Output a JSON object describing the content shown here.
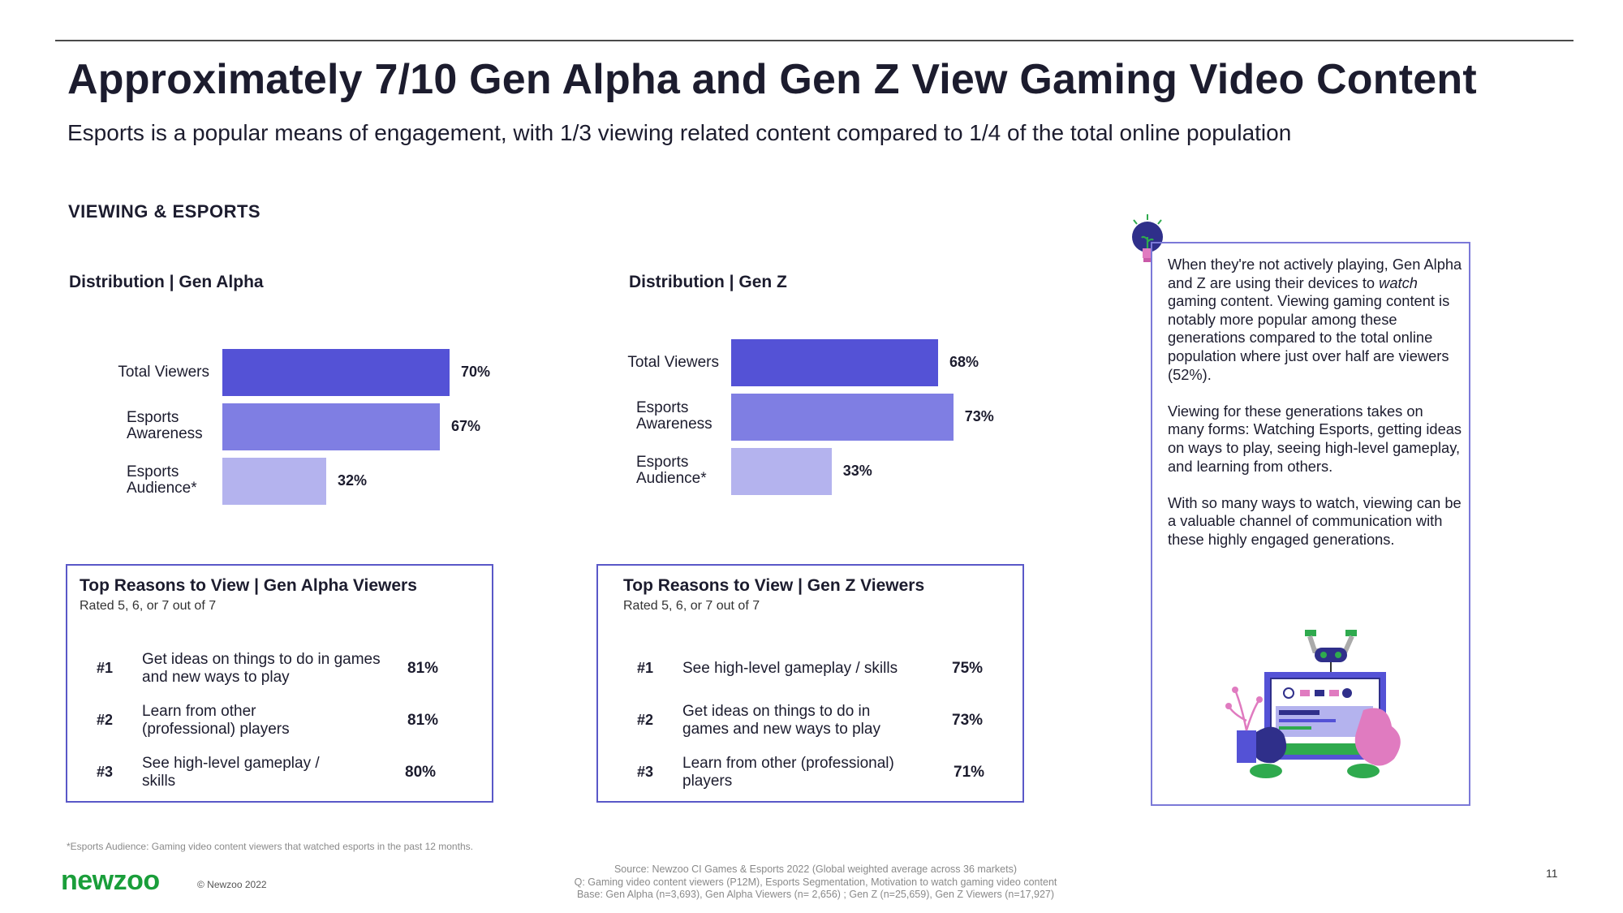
{
  "title": "Approximately 7/10 Gen Alpha and Gen Z View Gaming Video Content",
  "subtitle": "Esports is a popular means of engagement, with 1/3 viewing related content compared to 1/4 of the total online population",
  "section_label": "VIEWING & ESPORTS",
  "colors": {
    "bar1": "#5452d6",
    "bar2": "#7f7ee3",
    "bar3": "#b4b3ee",
    "box_border": "#5a58c8",
    "brand_green": "#1a9e3a"
  },
  "chart_data": [
    {
      "type": "bar",
      "orientation": "horizontal",
      "title": "Distribution | Gen Alpha",
      "categories": [
        "Total Viewers",
        "Esports Awareness",
        "Esports Audience*"
      ],
      "values": [
        70,
        67,
        32
      ],
      "value_labels": [
        "70%",
        "67%",
        "32%"
      ],
      "xlim": [
        0,
        100
      ]
    },
    {
      "type": "bar",
      "orientation": "horizontal",
      "title": "Distribution | Gen Z",
      "categories": [
        "Total Viewers",
        "Esports Awareness",
        "Esports Audience*"
      ],
      "values": [
        68,
        73,
        33
      ],
      "value_labels": [
        "68%",
        "73%",
        "33%"
      ],
      "xlim": [
        0,
        100
      ]
    }
  ],
  "reasons_alpha": {
    "title": "Top Reasons to View | Gen Alpha Viewers",
    "subtitle": "Rated 5, 6, or 7 out of 7",
    "rows": [
      {
        "rank": "#1",
        "text": "Get ideas on things to do in games and new ways to play",
        "pct": "81%"
      },
      {
        "rank": "#2",
        "text": "Learn from other (professional) players",
        "pct": "81%"
      },
      {
        "rank": "#3",
        "text": "See high-level gameplay / skills",
        "pct": "80%"
      }
    ]
  },
  "reasons_z": {
    "title": "Top Reasons to View | Gen Z Viewers",
    "subtitle": "Rated 5, 6, or 7 out of 7",
    "rows": [
      {
        "rank": "#1",
        "text": "See high-level gameplay / skills",
        "pct": "75%"
      },
      {
        "rank": "#2",
        "text": "Get ideas on things to do in games and new ways to play",
        "pct": "73%"
      },
      {
        "rank": "#3",
        "text": "Learn from other (professional) players",
        "pct": "71%"
      }
    ]
  },
  "info": {
    "p1_pre": "When they're not actively playing, Gen Alpha and Z are using their devices to ",
    "p1_em": "watch",
    "p1_post": " gaming content. Viewing gaming content is notably more popular among these generations compared to the total online population where just over half are viewers (52%).",
    "p2": "Viewing for these generations takes on many forms: Watching Esports, getting ideas on ways to play, seeing high-level gameplay, and learning from others.",
    "p3": "With so many ways to watch, viewing can be a valuable channel of communication with these highly engaged generations."
  },
  "footnote": "*Esports Audience: Gaming video content viewers that watched esports in the past 12 months.",
  "logo": "newzoo",
  "copyright": "© Newzoo 2022",
  "source_lines": [
    "Source: Newzoo CI Games & Esports 2022 (Global weighted average across 36 markets)",
    "Q: Gaming video content viewers (P12M), Esports Segmentation, Motivation to watch gaming video content",
    "Base:  Gen Alpha (n=3,693), Gen Alpha Viewers (n= 2,656) ; Gen Z (n=25,659), Gen Z Viewers  (n=17,927)"
  ],
  "page_number": "11",
  "icons": {
    "info_icon": "lightbulb-icon",
    "illustration": "gaming-setup-illustration"
  }
}
